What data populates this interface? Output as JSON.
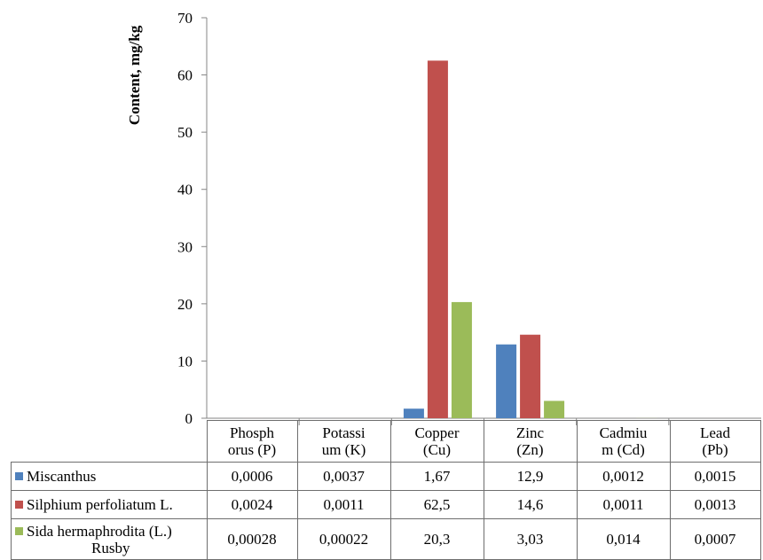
{
  "chart_data": {
    "type": "bar",
    "ylabel": "Content, mg/kg",
    "ylim": [
      0,
      70
    ],
    "yticks": [
      0,
      10,
      20,
      30,
      40,
      50,
      60,
      70
    ],
    "grid": false,
    "legend": "data-table",
    "categories": [
      "Phosphorus (P)",
      "Potassium (K)",
      "Copper (Cu)",
      "Zinc (Zn)",
      "Cadmium (Cd)",
      "Lead (Pb)"
    ],
    "category_display": [
      [
        "Phosph",
        "orus (P)"
      ],
      [
        "Potassi",
        "um (K)"
      ],
      [
        "Copper",
        "(Cu)"
      ],
      [
        "Zinc",
        "(Zn)"
      ],
      [
        "Cadmiu",
        "m (Cd)"
      ],
      [
        "Lead",
        "(Pb)"
      ]
    ],
    "series": [
      {
        "name": "Miscanthus",
        "color": "#4f81bd",
        "values": [
          0.0006,
          0.0037,
          1.67,
          12.9,
          0.0012,
          0.0015
        ],
        "labels": [
          "0,0006",
          "0,0037",
          "1,67",
          "12,9",
          "0,0012",
          "0,0015"
        ]
      },
      {
        "name": "Silphium perfoliatum L.",
        "color": "#c0504d",
        "values": [
          0.0024,
          0.0011,
          62.5,
          14.6,
          0.0011,
          0.0013
        ],
        "labels": [
          "0,0024",
          "0,0011",
          "62,5",
          "14,6",
          "0,0011",
          "0,0013"
        ]
      },
      {
        "name": "Sida hermaphrodita (L.) Rusby",
        "name_lines": [
          "Sida hermaphrodita (L.)",
          "Rusby"
        ],
        "color": "#9bbb59",
        "values": [
          0.00028,
          0.00022,
          20.3,
          3.03,
          0.014,
          0.0007
        ],
        "labels": [
          "0,00028",
          "0,00022",
          "20,3",
          "3,03",
          "0,014",
          "0,0007"
        ]
      }
    ]
  }
}
